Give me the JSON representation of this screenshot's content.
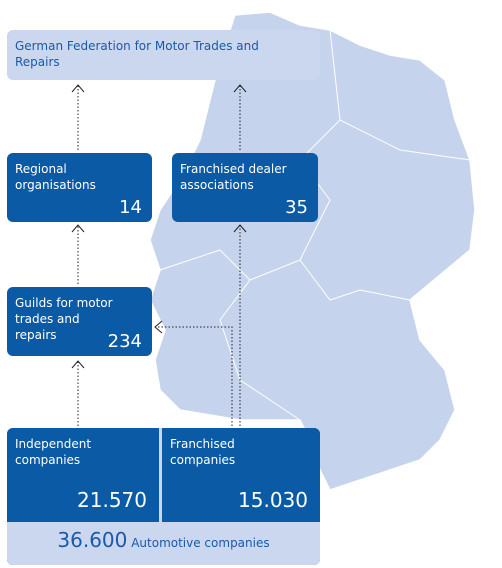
{
  "nodes": [
    {
      "label": "German Federation for Motor Trades and Repairs"
    },
    {
      "label": "Regional organisations",
      "count": "14"
    },
    {
      "label": "Franchised dealer associations",
      "count": "35"
    },
    {
      "label": "Guilds for motor trades and repairs",
      "count": "234"
    },
    {
      "label": "Independent companies",
      "count": "21.570"
    },
    {
      "label": "Franchised companies",
      "count": "15.030"
    },
    {
      "label": "Automotive companies",
      "count": "36.600"
    }
  ]
}
